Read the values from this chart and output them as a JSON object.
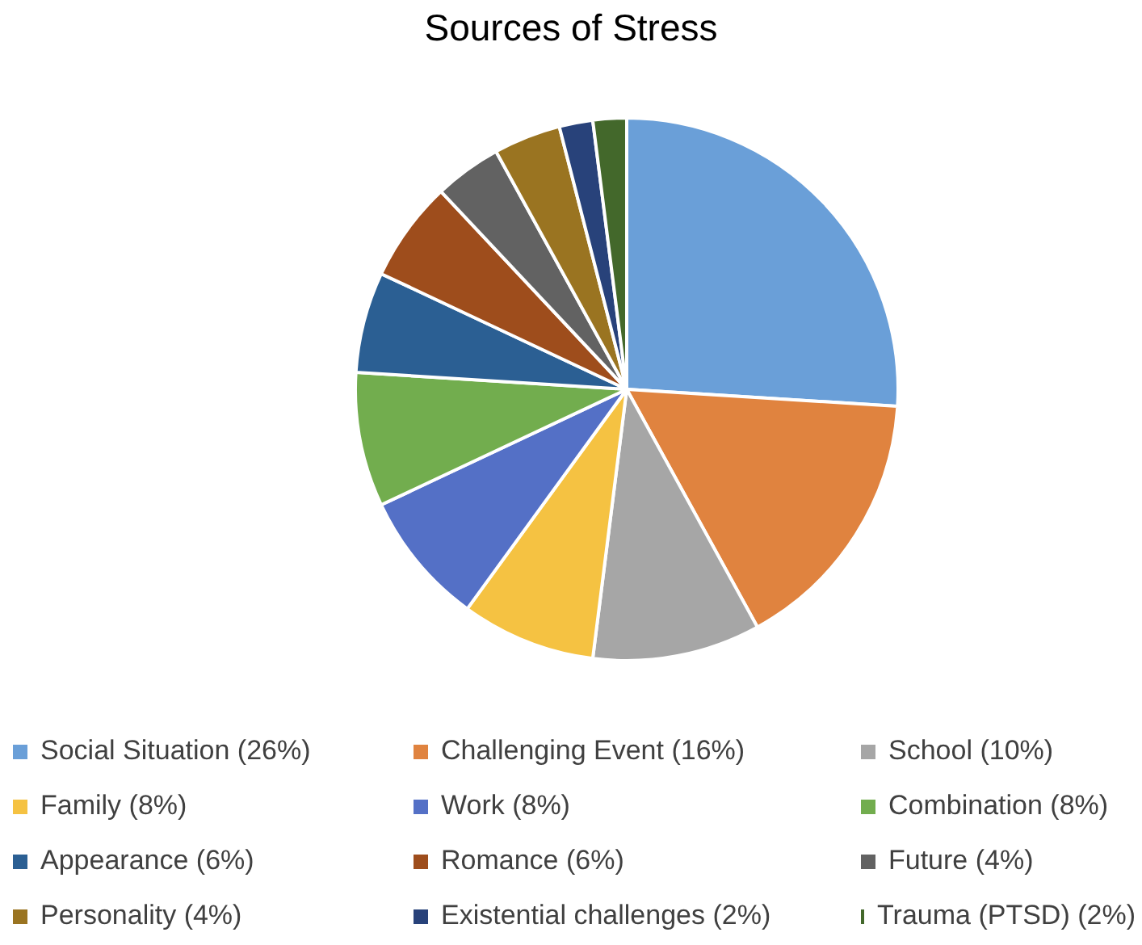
{
  "chart_data": {
    "type": "pie",
    "title": "Sources of Stress",
    "categories": [
      "Social Situation (26%)",
      "Challenging Event (16%)",
      "School (10%)",
      "Family (8%)",
      "Work (8%)",
      "Combination (8%)",
      "Appearance (6%)",
      "Romance (6%)",
      "Future (4%)",
      "Personality (4%)",
      "Existential challenges (2%)",
      "Trauma (PTSD) (2%)"
    ],
    "values": [
      26,
      16,
      10,
      8,
      8,
      8,
      6,
      6,
      4,
      4,
      2,
      2
    ],
    "colors": [
      "#6a9fd8",
      "#e0833f",
      "#a6a6a6",
      "#f5c242",
      "#5470c6",
      "#72ad4e",
      "#2b5f93",
      "#9e4d1c",
      "#626262",
      "#9a7421",
      "#28427a",
      "#43682b"
    ],
    "legend": "bottom"
  }
}
